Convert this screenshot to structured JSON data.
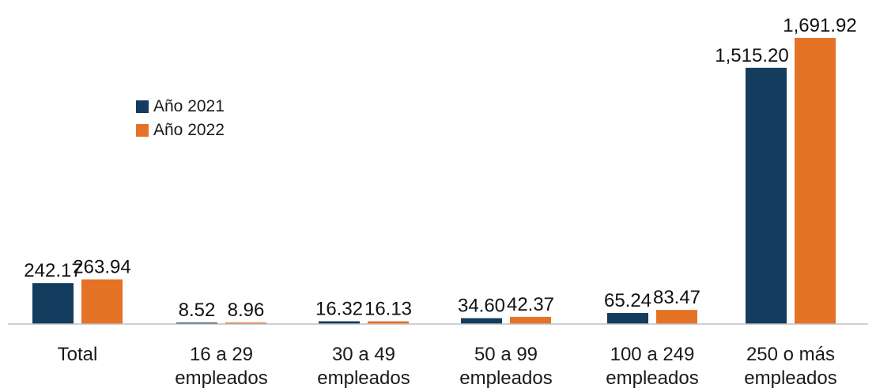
{
  "chart_data": {
    "type": "bar",
    "categories": [
      [
        "Total"
      ],
      [
        "16 a 29",
        "empleados"
      ],
      [
        "30 a 49",
        "empleados"
      ],
      [
        "50 a 99",
        "empleados"
      ],
      [
        "100 a 249",
        "empleados"
      ],
      [
        "250 o más",
        "empleados"
      ]
    ],
    "series": [
      {
        "name": "Año 2021",
        "color": "#133c5f",
        "values": [
          242.17,
          8.52,
          16.32,
          34.6,
          65.24,
          1515.2
        ],
        "labels": [
          "242.17",
          "8.52",
          "16.32",
          "34.60",
          "65.24",
          "1,515.20"
        ]
      },
      {
        "name": "Año 2022",
        "color": "#e47326",
        "values": [
          263.94,
          8.96,
          16.13,
          42.37,
          83.47,
          1691.92
        ],
        "labels": [
          "263.94",
          "8.96",
          "16.13",
          "42.37",
          "83.47",
          "1,691.92"
        ]
      }
    ],
    "title": "",
    "xlabel": "",
    "ylabel": "",
    "ylim": [
      0,
      1900
    ],
    "legend_position": "upper-left",
    "grid": false
  }
}
